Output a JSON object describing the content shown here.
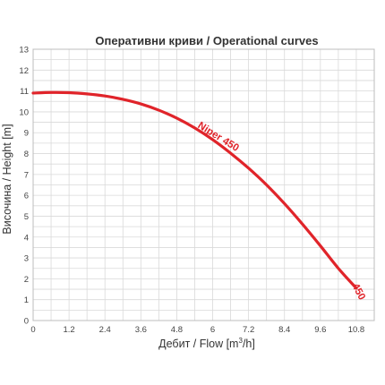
{
  "chart_data": {
    "type": "line",
    "title": "Оперативни криви / Operational curves",
    "xlabel_main": "Дебит / Flow [m",
    "xlabel_sup": "3",
    "xlabel_tail": "/h]",
    "ylabel": "Височина / Height [m]",
    "xlim": [
      0,
      11.4
    ],
    "ylim": [
      0,
      13
    ],
    "x_ticks": [
      "0",
      "1.2",
      "2.4",
      "3.6",
      "4.8",
      "6",
      "7.2",
      "8.4",
      "9.6",
      "10.8"
    ],
    "x_tick_values": [
      0,
      1.2,
      2.4,
      3.6,
      4.8,
      6,
      7.2,
      8.4,
      9.6,
      10.8
    ],
    "y_ticks": [
      "0",
      "1",
      "2",
      "3",
      "4",
      "5",
      "6",
      "7",
      "8",
      "9",
      "10",
      "11",
      "12",
      "13"
    ],
    "y_tick_values": [
      0,
      1,
      2,
      3,
      4,
      5,
      6,
      7,
      8,
      9,
      10,
      11,
      12,
      13
    ],
    "grid": true,
    "color": "#e0242a",
    "series": [
      {
        "name": "Niper 450",
        "end_label": "450",
        "x": [
          0,
          0.6,
          1.2,
          1.8,
          2.4,
          3.0,
          3.6,
          4.2,
          4.8,
          5.4,
          6.0,
          6.6,
          7.2,
          7.8,
          8.4,
          9.0,
          9.6,
          10.2,
          10.8
        ],
        "y": [
          10.9,
          10.93,
          10.92,
          10.86,
          10.76,
          10.6,
          10.38,
          10.08,
          9.7,
          9.23,
          8.67,
          8.02,
          7.3,
          6.5,
          5.6,
          4.62,
          3.58,
          2.5,
          1.55
        ]
      }
    ]
  }
}
